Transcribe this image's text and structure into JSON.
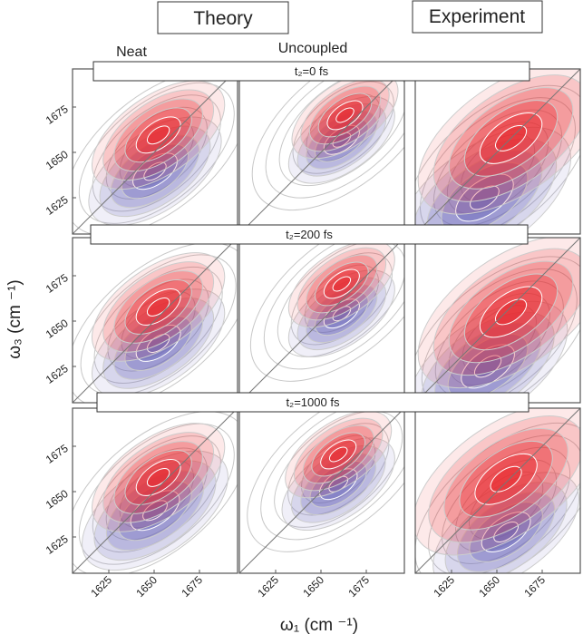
{
  "chart_data": {
    "type": "contour-grid",
    "headers": [
      "Theory",
      "Experiment"
    ],
    "column_labels": [
      "Neat",
      "Uncoupled"
    ],
    "row_labels": [
      "t₂=0 fs",
      "t₂=200 fs",
      "t₂=1000 fs"
    ],
    "xlabel": "ω₁ (cm ⁻¹)",
    "ylabel": "ω₃ (cm ⁻¹)",
    "xlim": [
      1605,
      1696
    ],
    "ylim": [
      1605,
      1696
    ],
    "xticks": [
      1625,
      1650,
      1675
    ],
    "yticks": [
      1625,
      1650,
      1675
    ],
    "positive_color": "#e8262b",
    "negative_color": "#6a63b8"
  }
}
